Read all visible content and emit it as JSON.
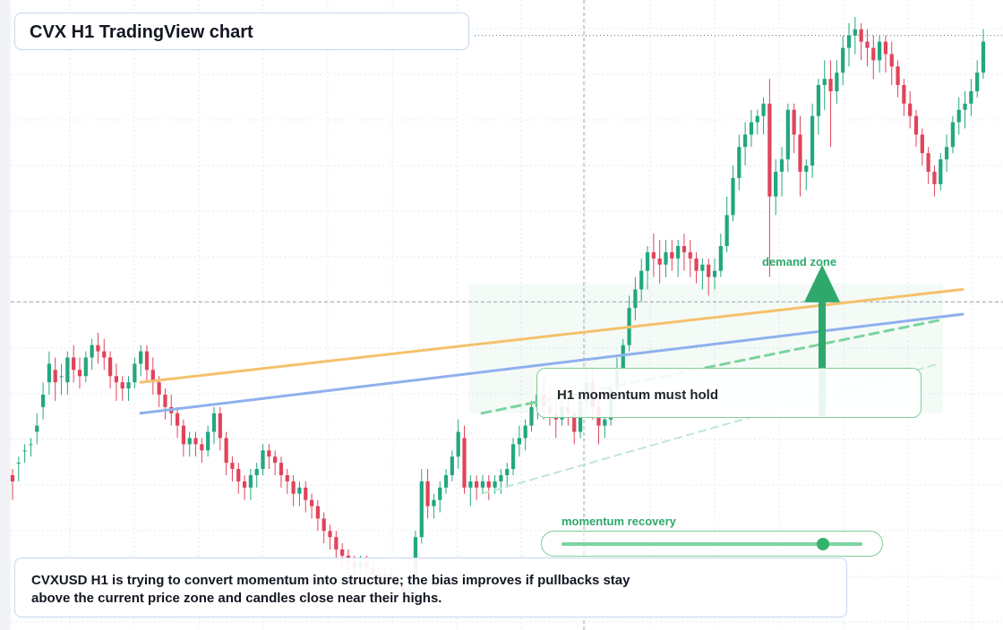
{
  "title": "CVX H1 TradingView chart",
  "annotations": {
    "demand_zone_label": "demand zone",
    "momentum_note": "H1 momentum must hold",
    "momentum_label": "momentum recovery"
  },
  "momentum_meter": {
    "value": 0.87
  },
  "summary": "CVXUSD H1 is trying to convert momentum into structure; the bias improves if pullbacks stay above the current price zone and candles close near their highs.",
  "colors": {
    "up": "#22a77f",
    "down": "#e0445a",
    "accent_green": "#2ea86b",
    "trend_orange": "#f5c16c",
    "trend_blue": "#8fb0ee",
    "grid": "#e6e9ee"
  },
  "icons": {
    "arrow": "up-arrow-icon"
  },
  "chart_data": {
    "type": "candlestick",
    "symbol": "CVXUSD",
    "timeframe": "H1",
    "ylim": [
      0,
      100
    ],
    "grid": true,
    "price_line": 96,
    "crosshair": {
      "x": 97,
      "y": 53
    },
    "candles": [
      [
        25,
        26,
        22,
        21,
        24
      ],
      [
        27,
        28,
        25,
        24,
        27
      ],
      [
        29,
        30,
        27,
        27,
        29
      ],
      [
        30,
        31,
        29,
        28,
        30
      ],
      [
        32,
        35,
        31,
        30,
        33
      ],
      [
        36,
        40,
        35,
        34,
        38
      ],
      [
        40,
        45,
        38,
        38,
        43
      ],
      [
        42,
        44,
        38,
        37,
        40
      ],
      [
        41,
        43,
        39,
        38,
        41
      ],
      [
        40,
        45,
        39,
        38,
        44
      ],
      [
        44,
        46,
        41,
        40,
        42
      ],
      [
        42,
        44,
        40,
        39,
        41
      ],
      [
        41,
        45,
        40,
        40,
        44
      ],
      [
        44,
        47,
        43,
        42,
        46
      ],
      [
        46,
        48,
        44,
        43,
        45
      ],
      [
        45,
        47,
        43,
        42,
        44
      ],
      [
        44,
        45,
        40,
        39,
        41
      ],
      [
        41,
        43,
        38,
        37,
        40
      ],
      [
        40,
        41,
        38,
        37,
        39
      ],
      [
        39,
        41,
        38,
        37,
        40
      ],
      [
        40,
        44,
        39,
        39,
        43
      ],
      [
        43,
        46,
        42,
        41,
        45
      ],
      [
        45,
        46,
        41,
        40,
        42
      ],
      [
        42,
        44,
        39,
        38,
        40
      ],
      [
        40,
        41,
        37,
        36,
        38
      ],
      [
        38,
        39,
        35,
        34,
        36
      ],
      [
        36,
        38,
        34,
        33,
        35
      ],
      [
        35,
        36,
        32,
        31,
        33
      ],
      [
        33,
        34,
        29,
        28,
        30
      ],
      [
        30,
        32,
        29,
        28,
        31
      ],
      [
        31,
        32,
        29,
        28,
        30
      ],
      [
        30,
        31,
        28,
        27,
        29
      ],
      [
        29,
        33,
        28,
        28,
        32
      ],
      [
        32,
        36,
        31,
        30,
        35
      ],
      [
        35,
        36,
        30,
        29,
        31
      ],
      [
        31,
        32,
        26,
        25,
        27
      ],
      [
        27,
        28,
        25,
        24,
        26
      ],
      [
        26,
        27,
        23,
        22,
        24
      ],
      [
        24,
        25,
        22,
        21,
        23
      ],
      [
        23,
        26,
        22,
        21,
        25
      ],
      [
        25,
        27,
        24,
        23,
        26
      ],
      [
        26,
        30,
        25,
        25,
        29
      ],
      [
        29,
        30,
        27,
        26,
        28
      ],
      [
        28,
        29,
        26,
        25,
        27
      ],
      [
        27,
        28,
        24,
        23,
        25
      ],
      [
        25,
        26,
        23,
        22,
        24
      ],
      [
        24,
        25,
        21,
        20,
        22
      ],
      [
        22,
        24,
        21,
        20,
        23
      ],
      [
        23,
        24,
        20,
        19,
        21
      ],
      [
        21,
        22,
        19,
        18,
        20
      ],
      [
        20,
        21,
        17,
        16,
        18
      ],
      [
        18,
        19,
        15,
        14,
        16
      ],
      [
        16,
        17,
        14,
        13,
        15
      ],
      [
        15,
        16,
        12,
        11,
        13
      ],
      [
        13,
        14,
        11,
        10,
        12
      ],
      [
        12,
        13,
        10,
        9,
        11
      ],
      [
        11,
        12,
        9,
        8,
        10
      ],
      [
        10,
        12,
        9,
        9,
        11
      ],
      [
        11,
        12,
        9,
        8,
        10
      ],
      [
        10,
        11,
        8,
        7,
        9
      ],
      [
        9,
        10,
        7,
        6,
        8
      ],
      [
        8,
        10,
        7,
        7,
        9
      ],
      [
        9,
        10,
        7,
        6,
        8
      ],
      [
        8,
        9,
        6,
        5,
        7
      ],
      [
        7,
        8,
        5,
        4,
        6
      ],
      [
        6,
        8,
        5,
        5,
        7
      ],
      [
        7,
        16,
        6,
        6,
        15
      ],
      [
        15,
        26,
        14,
        14,
        24
      ],
      [
        24,
        26,
        19,
        18,
        20
      ],
      [
        20,
        22,
        18,
        18,
        21
      ],
      [
        21,
        24,
        20,
        19,
        23
      ],
      [
        23,
        26,
        22,
        22,
        25
      ],
      [
        25,
        29,
        25,
        24,
        28
      ],
      [
        28,
        34,
        26,
        26,
        32
      ],
      [
        31,
        33,
        22,
        22,
        23
      ],
      [
        23,
        25,
        21,
        20,
        24
      ],
      [
        24,
        25,
        21,
        21,
        23
      ],
      [
        23,
        25,
        22,
        22,
        24
      ],
      [
        24,
        25,
        22,
        21,
        23
      ],
      [
        23,
        25,
        22,
        22,
        24
      ],
      [
        24,
        26,
        22,
        22,
        25
      ],
      [
        25,
        27,
        23,
        23,
        26
      ],
      [
        26,
        31,
        26,
        25,
        30
      ],
      [
        30,
        33,
        29,
        28,
        31
      ],
      [
        31,
        34,
        29,
        29,
        33
      ],
      [
        33,
        37,
        32,
        32,
        36
      ],
      [
        36,
        40,
        35,
        34,
        38
      ],
      [
        38,
        41,
        35,
        34,
        36
      ],
      [
        36,
        39,
        34,
        33,
        35
      ],
      [
        35,
        37,
        32,
        31,
        34
      ],
      [
        34,
        37,
        33,
        33,
        36
      ],
      [
        36,
        38,
        34,
        33,
        35
      ],
      [
        35,
        36,
        31,
        30,
        32
      ],
      [
        32,
        38,
        32,
        31,
        37
      ],
      [
        37,
        42,
        36,
        35,
        40
      ],
      [
        40,
        42,
        35,
        34,
        36
      ],
      [
        36,
        37,
        31,
        30,
        33
      ],
      [
        33,
        35,
        32,
        31,
        34
      ],
      [
        34,
        40,
        33,
        33,
        39
      ],
      [
        39,
        44,
        38,
        38,
        42
      ],
      [
        42,
        47,
        41,
        41,
        46
      ],
      [
        46,
        54,
        45,
        45,
        52
      ],
      [
        52,
        57,
        50,
        50,
        55
      ],
      [
        55,
        60,
        54,
        53,
        58
      ],
      [
        58,
        62,
        56,
        55,
        61
      ],
      [
        61,
        64,
        58,
        57,
        60
      ],
      [
        60,
        63,
        57,
        56,
        59
      ],
      [
        59,
        63,
        58,
        57,
        61
      ],
      [
        61,
        63,
        59,
        58,
        60
      ],
      [
        60,
        63,
        58,
        57,
        62
      ],
      [
        62,
        64,
        59,
        58,
        61
      ],
      [
        61,
        63,
        58,
        57,
        60
      ],
      [
        60,
        61,
        57,
        56,
        58
      ],
      [
        58,
        60,
        56,
        55,
        59
      ],
      [
        59,
        60,
        55,
        54,
        57
      ],
      [
        57,
        60,
        56,
        55,
        58
      ],
      [
        58,
        64,
        57,
        57,
        62
      ],
      [
        62,
        70,
        62,
        61,
        67
      ],
      [
        67,
        75,
        66,
        66,
        73
      ],
      [
        73,
        80,
        71,
        71,
        78
      ],
      [
        78,
        82,
        76,
        75,
        80
      ],
      [
        80,
        84,
        79,
        78,
        82
      ],
      [
        82,
        84,
        80,
        80,
        83
      ],
      [
        83,
        86,
        81,
        80,
        85
      ],
      [
        85,
        89,
        83,
        57,
        70
      ],
      [
        70,
        76,
        68,
        67,
        74
      ],
      [
        74,
        78,
        71,
        70,
        76
      ],
      [
        76,
        85,
        75,
        74,
        84
      ],
      [
        84,
        85,
        78,
        77,
        80
      ],
      [
        80,
        83,
        77,
        70,
        74
      ],
      [
        74,
        76,
        72,
        71,
        75
      ],
      [
        75,
        85,
        74,
        73,
        83
      ],
      [
        83,
        89,
        82,
        80,
        88
      ],
      [
        88,
        92,
        85,
        84,
        89
      ],
      [
        89,
        92,
        85,
        78,
        87
      ],
      [
        87,
        92,
        86,
        85,
        90
      ],
      [
        90,
        96,
        89,
        88,
        94
      ],
      [
        94,
        98,
        92,
        91,
        96
      ],
      [
        96,
        99,
        94,
        93,
        97
      ],
      [
        97,
        98,
        93,
        92,
        95
      ],
      [
        95,
        97,
        92,
        91,
        94
      ],
      [
        94,
        96,
        90,
        89,
        92
      ],
      [
        92,
        96,
        91,
        90,
        95
      ],
      [
        95,
        96,
        91,
        90,
        93
      ],
      [
        93,
        95,
        89,
        88,
        91
      ],
      [
        91,
        92,
        87,
        86,
        88
      ],
      [
        88,
        89,
        84,
        83,
        85
      ],
      [
        85,
        87,
        82,
        81,
        83
      ],
      [
        83,
        84,
        79,
        78,
        80
      ],
      [
        80,
        81,
        76,
        75,
        77
      ],
      [
        77,
        78,
        73,
        72,
        74
      ],
      [
        74,
        75,
        71,
        70,
        72
      ],
      [
        72,
        77,
        71,
        71,
        76
      ],
      [
        76,
        80,
        75,
        74,
        78
      ],
      [
        78,
        83,
        77,
        77,
        82
      ],
      [
        82,
        86,
        81,
        80,
        84
      ],
      [
        84,
        87,
        82,
        81,
        85
      ],
      [
        85,
        89,
        84,
        83,
        87
      ],
      [
        87,
        92,
        86,
        86,
        90
      ],
      [
        90,
        97,
        89,
        89,
        95
      ]
    ],
    "trendlines": [
      {
        "name": "upper",
        "style": "solid",
        "points": [
          [
            0,
            40
          ],
          [
            100,
            55
          ]
        ]
      },
      {
        "name": "lower",
        "style": "solid",
        "points": [
          [
            0,
            35
          ],
          [
            100,
            51
          ]
        ]
      },
      {
        "name": "channel_top",
        "style": "dashed",
        "points": [
          [
            47,
            35
          ],
          [
            100,
            50
          ]
        ]
      },
      {
        "name": "channel_bottom",
        "style": "dashed-light",
        "points": [
          [
            47,
            22
          ],
          [
            100,
            43
          ]
        ]
      }
    ],
    "demand_zone": {
      "y": [
        35,
        56
      ],
      "x": [
        47,
        100
      ]
    },
    "target_arrow": {
      "from": 35,
      "to": 59
    }
  }
}
